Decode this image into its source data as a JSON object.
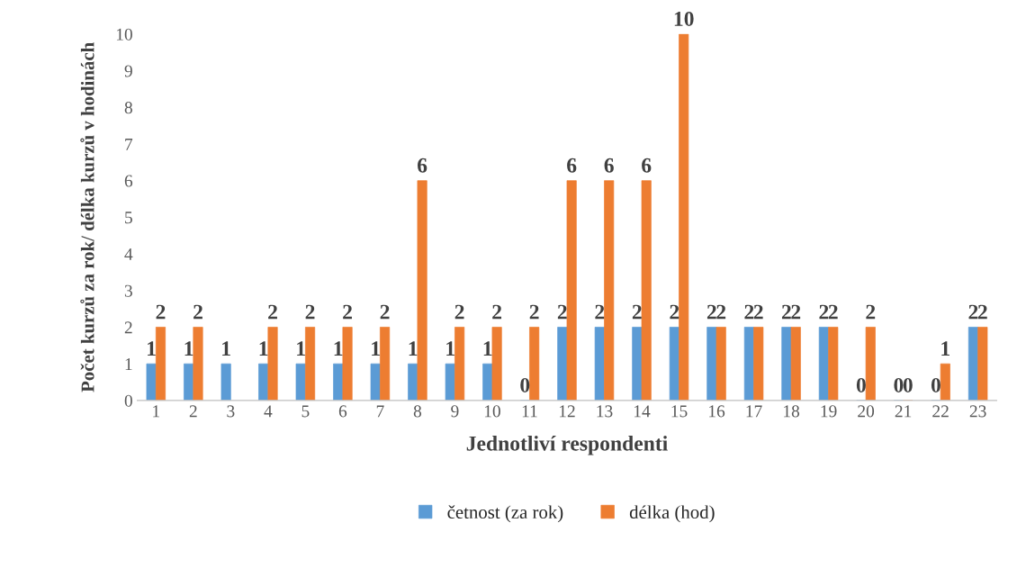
{
  "chart_data": {
    "type": "bar",
    "xlabel": "Jednotliví respondenti",
    "ylabel": "Počet kurzů za rok/ délka kurzů v hodinách",
    "categories": [
      "1",
      "2",
      "3",
      "4",
      "5",
      "6",
      "7",
      "8",
      "9",
      "10",
      "11",
      "12",
      "13",
      "14",
      "15",
      "16",
      "17",
      "18",
      "19",
      "20",
      "21",
      "22",
      "23"
    ],
    "series": [
      {
        "name": "četnost (za rok)",
        "color": "#5b9bd5",
        "values": [
          1,
          1,
          1,
          1,
          1,
          1,
          1,
          1,
          1,
          1,
          0,
          2,
          2,
          2,
          2,
          2,
          2,
          2,
          2,
          0,
          0,
          0,
          2
        ]
      },
      {
        "name": "délka (hod)",
        "color": "#ed7d31",
        "values": [
          2,
          2,
          null,
          2,
          2,
          2,
          2,
          6,
          2,
          2,
          2,
          6,
          6,
          6,
          10,
          2,
          2,
          2,
          2,
          2,
          0,
          1,
          2
        ]
      }
    ],
    "ylim": [
      0,
      10
    ],
    "yticks": [
      0,
      1,
      2,
      3,
      4,
      5,
      6,
      7,
      8,
      9,
      10
    ],
    "grid": false,
    "legend": "bottom",
    "data_labels": true
  }
}
